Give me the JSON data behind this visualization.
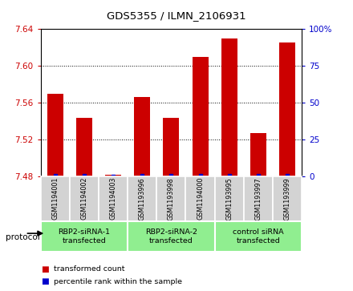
{
  "title": "GDS5355 / ILMN_2106931",
  "samples": [
    "GSM1194001",
    "GSM1194002",
    "GSM1194003",
    "GSM1193996",
    "GSM1193998",
    "GSM1194000",
    "GSM1193995",
    "GSM1193997",
    "GSM1193999"
  ],
  "bar_values": [
    7.57,
    7.543,
    7.481,
    7.566,
    7.543,
    7.61,
    7.63,
    7.527,
    7.625
  ],
  "percentile_values": [
    0.385,
    0.26,
    0.035,
    0.375,
    0.27,
    0.56,
    0.555,
    0.195,
    0.555
  ],
  "bar_bottom": 7.48,
  "ylim_left": [
    7.48,
    7.64
  ],
  "ylim_right": [
    0,
    100
  ],
  "yticks_left": [
    7.48,
    7.52,
    7.56,
    7.6,
    7.64
  ],
  "yticks_right": [
    0,
    25,
    50,
    75,
    100
  ],
  "groups": [
    {
      "label": "RBP2-siRNA-1\ntransfected",
      "start": 0,
      "end": 3,
      "color": "#90EE90"
    },
    {
      "label": "RBP2-siRNA-2\ntransfected",
      "start": 3,
      "end": 6,
      "color": "#90EE90"
    },
    {
      "label": "control siRNA\ntransfected",
      "start": 6,
      "end": 9,
      "color": "#90EE90"
    }
  ],
  "bar_color": "#CC0000",
  "percentile_color": "#0000CC",
  "tick_label_color_left": "#CC0000",
  "tick_label_color_right": "#0000CC",
  "sample_bg_color": "#D3D3D3",
  "protocol_label": "protocol",
  "legend_items": [
    {
      "color": "#CC0000",
      "label": "transformed count"
    },
    {
      "color": "#0000CC",
      "label": "percentile rank within the sample"
    }
  ]
}
